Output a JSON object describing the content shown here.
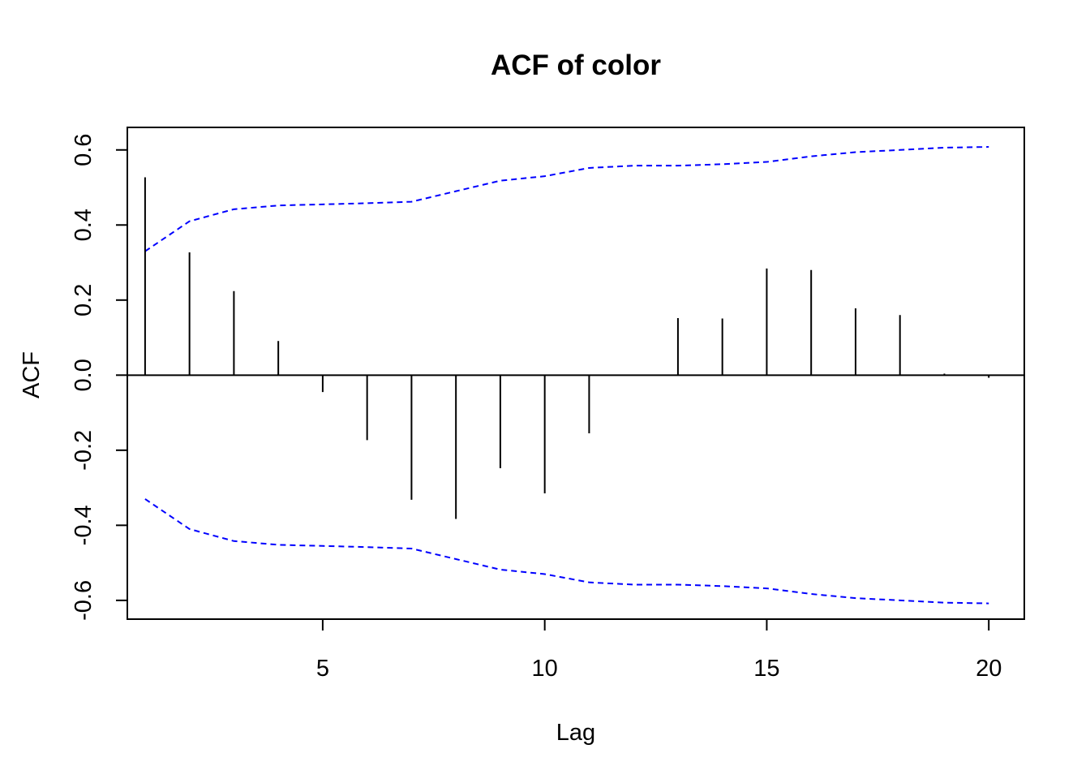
{
  "chart_data": {
    "type": "bar",
    "title": "ACF of color",
    "xlabel": "Lag",
    "ylabel": "ACF",
    "xlim": [
      0.6,
      20.8
    ],
    "ylim": [
      -0.65,
      0.66
    ],
    "x_ticks": [
      5,
      10,
      15,
      20
    ],
    "y_ticks": [
      -0.6,
      -0.4,
      -0.2,
      0.0,
      0.2,
      0.4,
      0.6
    ],
    "y_tick_labels": [
      "-0.6",
      "-0.4",
      "-0.2",
      "0.0",
      "0.2",
      "0.4",
      "0.6"
    ],
    "grid": false,
    "legend": "none",
    "colors": {
      "bars": "#000000",
      "bounds": "#0000ff",
      "frame": "#000000"
    },
    "lags": [
      1,
      2,
      3,
      4,
      5,
      6,
      7,
      8,
      9,
      10,
      11,
      12,
      13,
      14,
      15,
      16,
      17,
      18,
      19,
      20
    ],
    "acf": [
      0.527,
      0.327,
      0.224,
      0.091,
      -0.045,
      -0.173,
      -0.332,
      -0.383,
      -0.248,
      -0.315,
      -0.155,
      0.0,
      0.152,
      0.151,
      0.284,
      0.28,
      0.178,
      0.16,
      0.004,
      -0.007
    ],
    "upper_bound": [
      0.33,
      0.41,
      0.442,
      0.452,
      0.455,
      0.458,
      0.462,
      0.49,
      0.518,
      0.53,
      0.552,
      0.558,
      0.558,
      0.562,
      0.568,
      0.583,
      0.594,
      0.6,
      0.606,
      0.608
    ],
    "lower_bound": [
      -0.33,
      -0.41,
      -0.442,
      -0.452,
      -0.455,
      -0.458,
      -0.462,
      -0.49,
      -0.518,
      -0.53,
      -0.552,
      -0.558,
      -0.558,
      -0.562,
      -0.568,
      -0.583,
      -0.594,
      -0.6,
      -0.606,
      -0.608
    ]
  }
}
